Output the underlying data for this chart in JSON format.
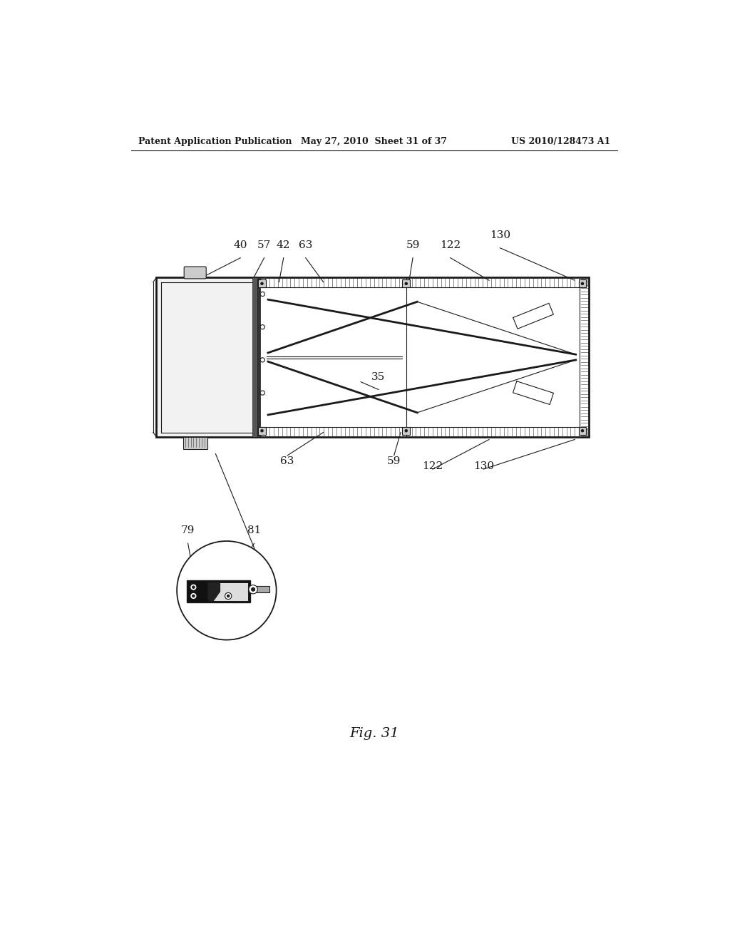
{
  "bg_color": "#ffffff",
  "header_left": "Patent Application Publication",
  "header_mid": "May 27, 2010  Sheet 31 of 37",
  "header_right": "US 2010/128473 A1",
  "fig_label": "Fig. 31",
  "color_main": "#1a1a1a",
  "color_black": "#000000",
  "color_gray_light": "#e8e8e8",
  "color_gray_mid": "#aaaaaa",
  "color_gray_dark": "#555555",
  "color_strip": "#888888"
}
